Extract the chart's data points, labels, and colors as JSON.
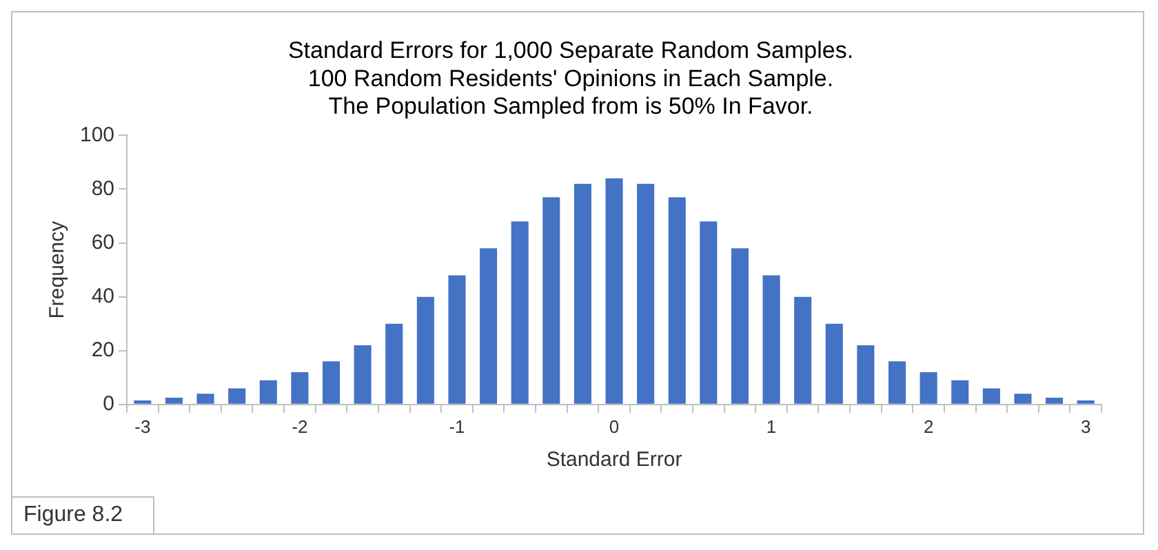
{
  "chart_data": {
    "type": "bar",
    "title": "Standard Errors for 1,000 Separate Random Samples.\n100 Random Residents' Opinions in Each Sample.\nThe Population Sampled from is 50% In Favor.",
    "xlabel": "Standard Error",
    "ylabel": "Frequency",
    "categories": [
      "-3",
      null,
      null,
      null,
      null,
      "-2",
      null,
      null,
      null,
      null,
      "-1",
      null,
      null,
      null,
      null,
      "0",
      null,
      null,
      null,
      null,
      "1",
      null,
      null,
      null,
      null,
      "2",
      null,
      null,
      null,
      null,
      "3"
    ],
    "values": [
      1.5,
      2.5,
      4,
      6,
      9,
      12,
      16,
      22,
      30,
      40,
      48,
      58,
      68,
      77,
      82,
      84,
      82,
      77,
      68,
      58,
      48,
      40,
      30,
      22,
      16,
      12,
      9,
      6,
      4,
      2.5,
      1.5
    ],
    "color": "#4472c4",
    "ylim": [
      0,
      100
    ],
    "yticks": [
      0,
      20,
      40,
      60,
      80,
      100
    ],
    "grid": false,
    "legend": false,
    "annotations": [
      "Figure 8.2"
    ]
  }
}
